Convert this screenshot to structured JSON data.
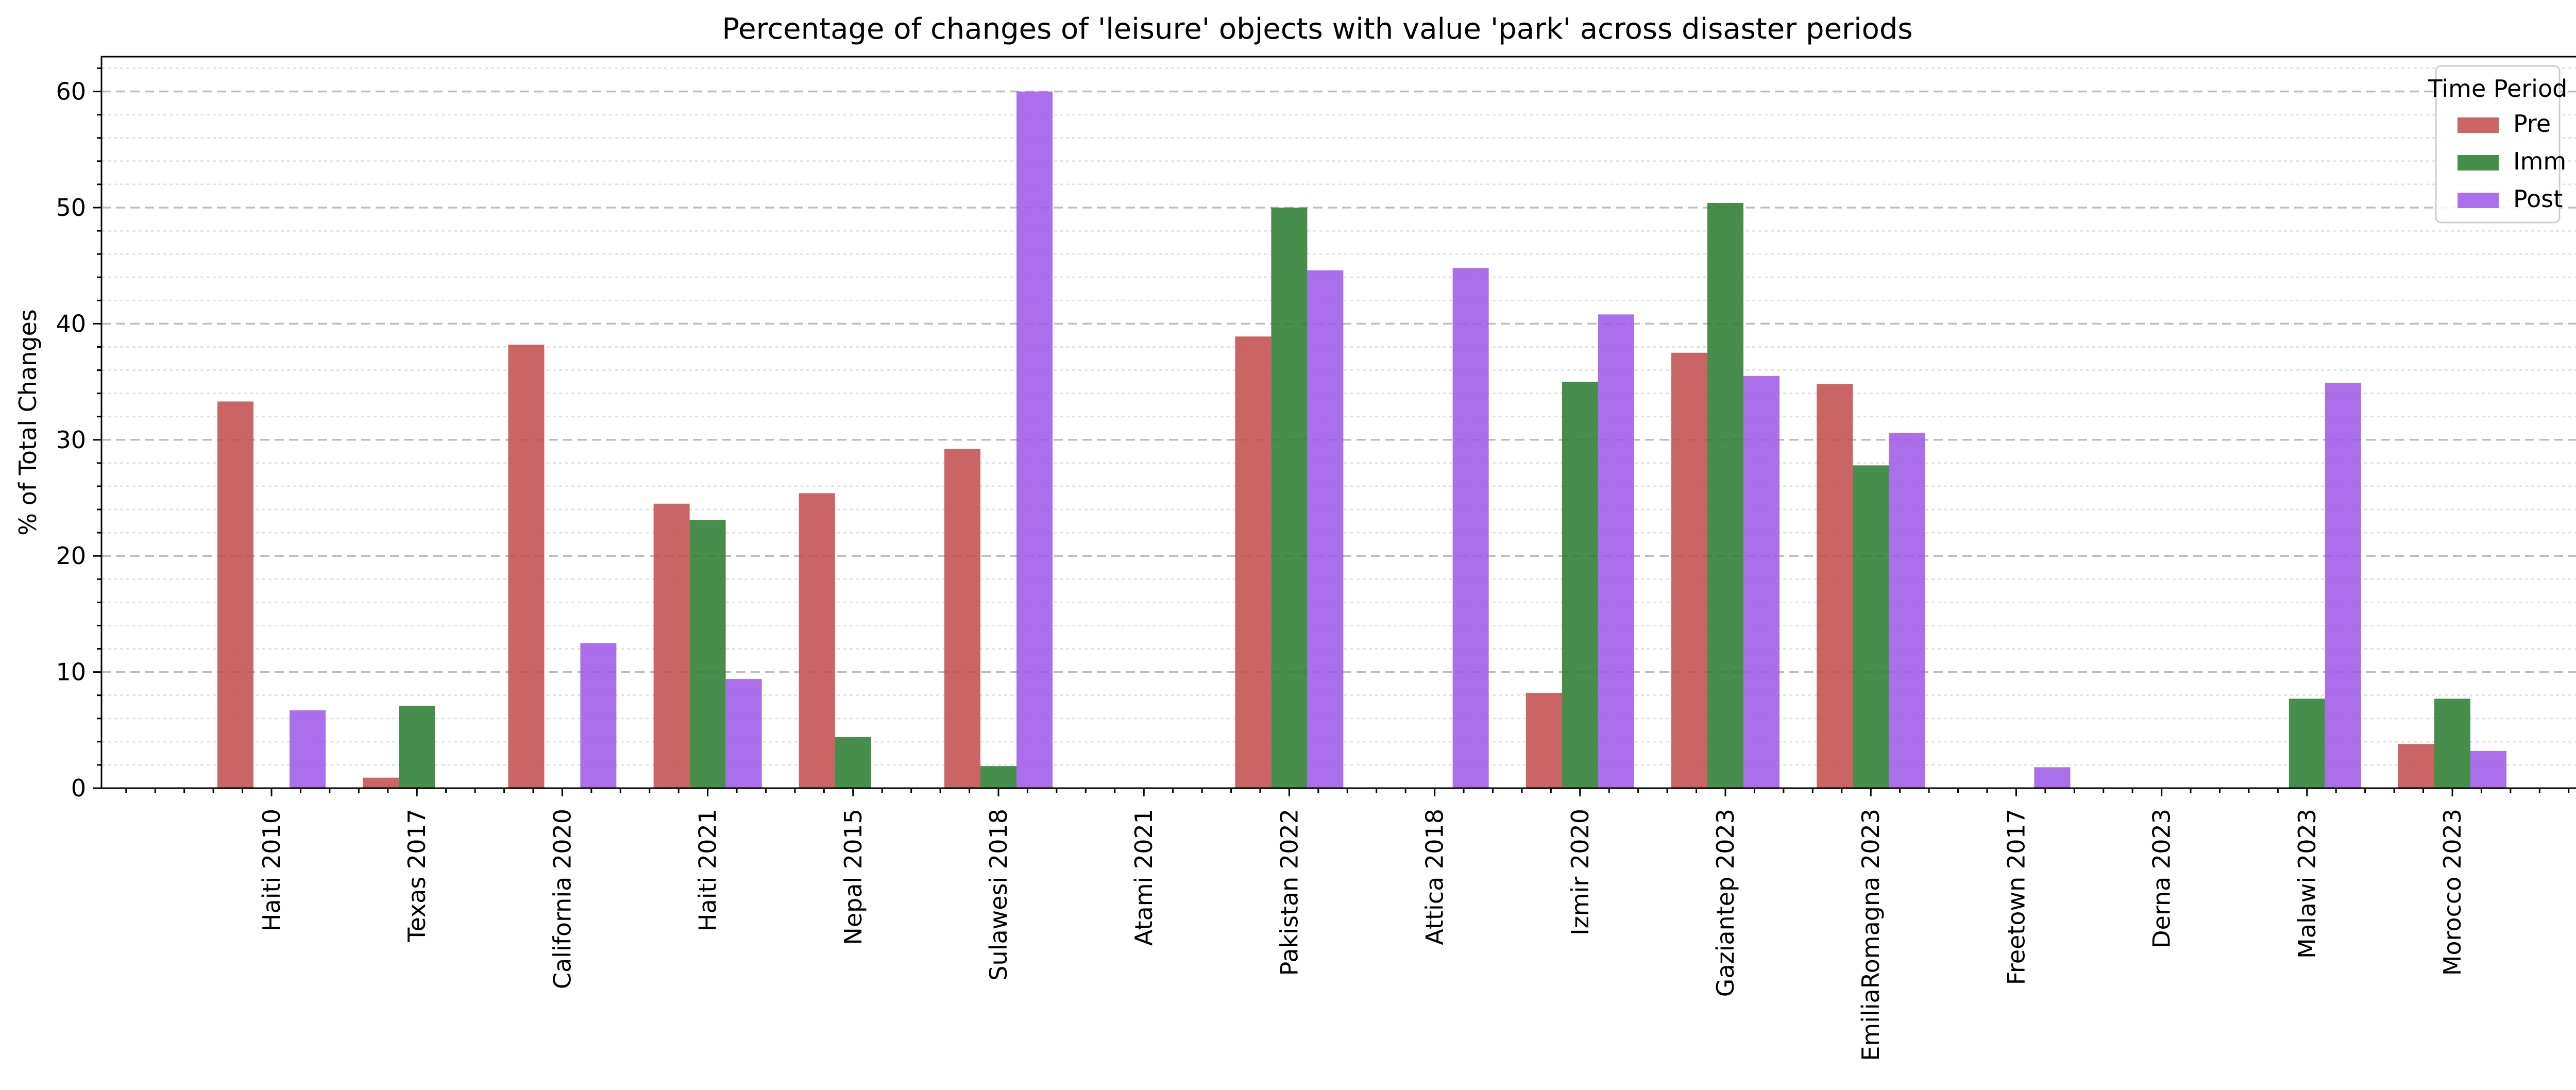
{
  "chart_data": {
    "type": "bar",
    "title": "Percentage of changes of 'leisure' objects with value 'park' across disaster periods",
    "xlabel": "",
    "ylabel": "% of Total Changes",
    "ylim": [
      0,
      63
    ],
    "yticks": [
      0,
      10,
      20,
      30,
      40,
      50,
      60
    ],
    "grid": true,
    "legend": {
      "title": "Time Period",
      "placement": "top-right"
    },
    "categories": [
      "Haiti 2010",
      "Texas 2017",
      "California 2020",
      "Haiti 2021",
      "Nepal 2015",
      "Sulawesi 2018",
      "Atami 2021",
      "Pakistan 2022",
      "Attica 2018",
      "Izmir 2020",
      "Gaziantep 2023",
      "EmiliaRomagna 2023",
      "Freetown 2017",
      "Derna 2023",
      "Malawi 2023",
      "Morocco 2023"
    ],
    "series": [
      {
        "name": "Pre",
        "color": "#c44e4e",
        "values": [
          33.3,
          0.9,
          38.2,
          24.5,
          25.4,
          29.2,
          0,
          38.9,
          0,
          8.2,
          37.5,
          34.8,
          0,
          0,
          0,
          3.8
        ]
      },
      {
        "name": "Imm",
        "color": "#2e7d32",
        "values": [
          0,
          7.1,
          0,
          23.1,
          4.4,
          1.9,
          0,
          50.0,
          0,
          35.0,
          50.4,
          27.8,
          0,
          0,
          7.7,
          7.7
        ]
      },
      {
        "name": "Post",
        "color": "#a05be8",
        "values": [
          6.7,
          0,
          12.5,
          9.4,
          0,
          60.0,
          0,
          44.6,
          44.8,
          40.8,
          35.5,
          30.6,
          1.8,
          0,
          34.9,
          3.2
        ]
      }
    ]
  }
}
